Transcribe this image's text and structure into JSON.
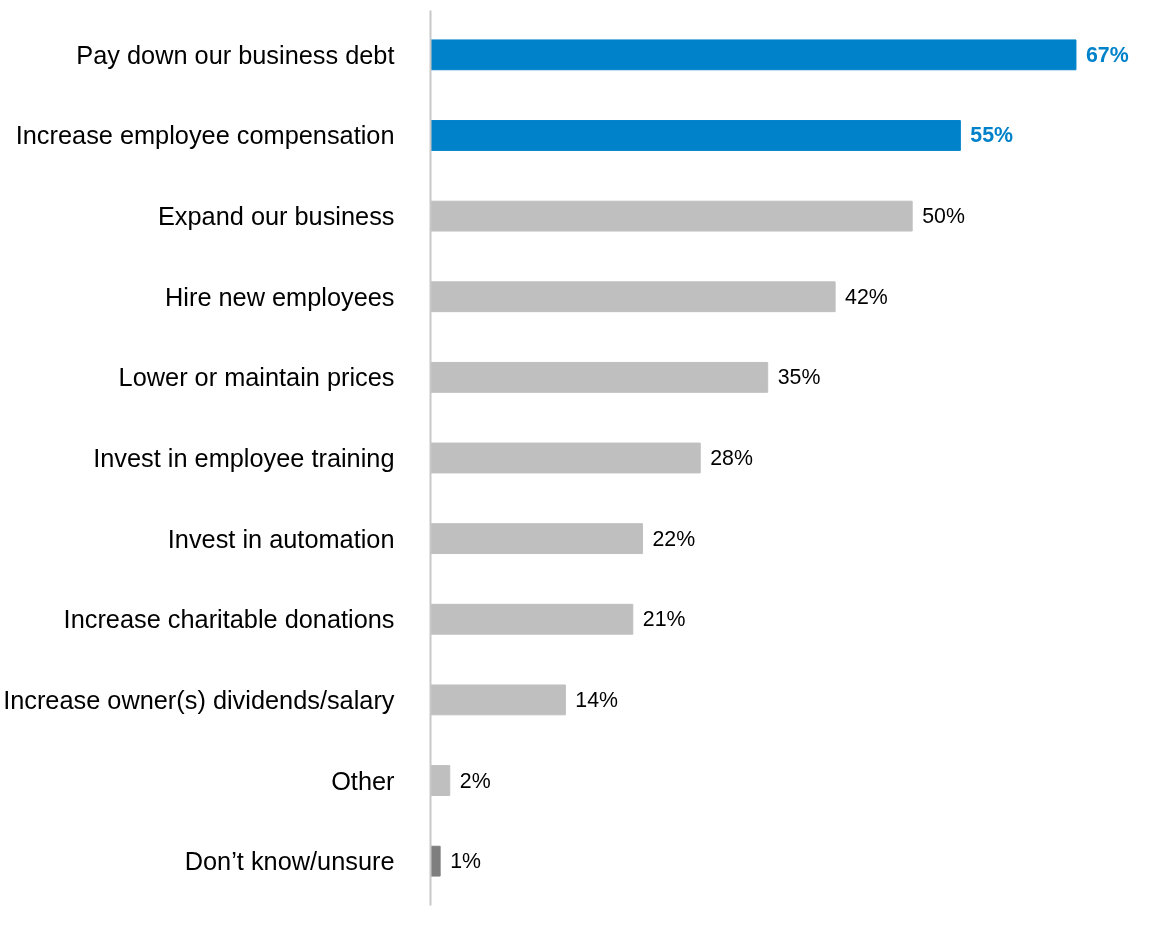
{
  "chart_data": {
    "type": "bar",
    "orientation": "horizontal",
    "categories": [
      "Pay down our business debt",
      "Increase employee compensation",
      "Expand our business",
      "Hire new employees",
      "Lower or maintain prices",
      "Invest in employee training",
      "Invest in automation",
      "Increase charitable donations",
      "Increase owner(s) dividends/salary",
      "Other",
      "Don’t know/unsure"
    ],
    "values": [
      67,
      55,
      50,
      42,
      35,
      28,
      22,
      21,
      14,
      2,
      1
    ],
    "colors": [
      "#0082ca",
      "#0082ca",
      "#bfbfbf",
      "#bfbfbf",
      "#bfbfbf",
      "#bfbfbf",
      "#bfbfbf",
      "#bfbfbf",
      "#bfbfbf",
      "#bfbfbf",
      "#7f7f7f"
    ],
    "value_labels": [
      "67%",
      "55%",
      "50%",
      "42%",
      "35%",
      "28%",
      "22%",
      "21%",
      "14%",
      "2%",
      "1%"
    ],
    "grid": false
  }
}
